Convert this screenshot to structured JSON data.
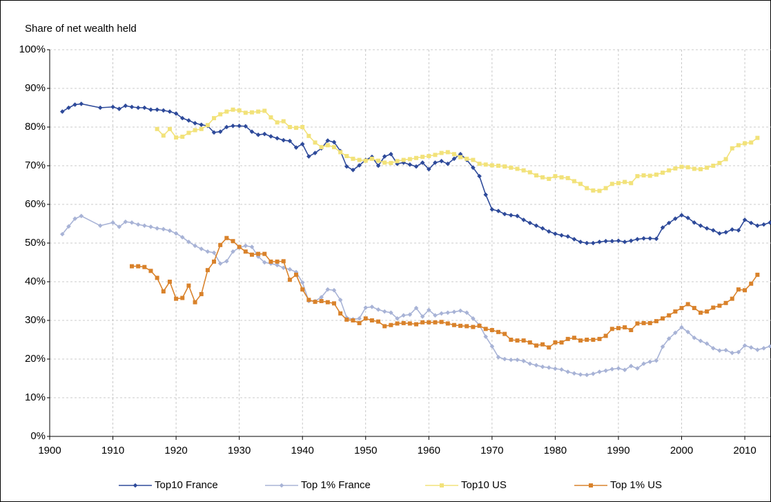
{
  "chart_data": {
    "type": "line",
    "y_label": "Share of net wealth held",
    "xlim": [
      1900,
      2015
    ],
    "xticks": [
      1900,
      1910,
      1920,
      1930,
      1940,
      1950,
      1960,
      1970,
      1980,
      1990,
      2000,
      2010
    ],
    "ylim": [
      0,
      100
    ],
    "yticks": [
      {
        "value": 0,
        "label": "0%"
      },
      {
        "value": 10,
        "label": "10%"
      },
      {
        "value": 20,
        "label": "20%"
      },
      {
        "value": 30,
        "label": "30%"
      },
      {
        "value": 40,
        "label": "40%"
      },
      {
        "value": 50,
        "label": "50%"
      },
      {
        "value": 60,
        "label": "60%"
      },
      {
        "value": 70,
        "label": "70%"
      },
      {
        "value": 80,
        "label": "80%"
      },
      {
        "value": 90,
        "label": "90%"
      },
      {
        "value": 100,
        "label": "100%"
      }
    ],
    "grid": true,
    "legend": "bottom",
    "series": [
      {
        "name": "Top10 France",
        "color": "#2e4a9a",
        "marker": "diamond",
        "x": [
          1902,
          1903,
          1904,
          1905,
          1908,
          1910,
          1911,
          1912,
          1913,
          1914,
          1915,
          1916,
          1917,
          1918,
          1919,
          1920,
          1921,
          1922,
          1923,
          1924,
          1925,
          1926,
          1927,
          1928,
          1929,
          1930,
          1931,
          1932,
          1933,
          1934,
          1935,
          1936,
          1937,
          1938,
          1939,
          1940,
          1941,
          1942,
          1943,
          1944,
          1945,
          1946,
          1947,
          1948,
          1949,
          1950,
          1951,
          1952,
          1953,
          1954,
          1955,
          1956,
          1957,
          1958,
          1959,
          1960,
          1961,
          1962,
          1963,
          1964,
          1965,
          1966,
          1967,
          1968,
          1969,
          1970,
          1971,
          1972,
          1973,
          1974,
          1975,
          1976,
          1977,
          1978,
          1979,
          1980,
          1981,
          1982,
          1983,
          1984,
          1985,
          1986,
          1987,
          1988,
          1989,
          1990,
          1991,
          1992,
          1993,
          1994,
          1995,
          1996,
          1997,
          1998,
          1999,
          2000,
          2001,
          2002,
          2003,
          2004,
          2005,
          2006,
          2007,
          2008,
          2009,
          2010,
          2011,
          2012,
          2013,
          2014
        ],
        "values": [
          84,
          85,
          85.8,
          86,
          85,
          85.2,
          84.7,
          85.5,
          85.2,
          85,
          85,
          84.5,
          84.5,
          84.3,
          84,
          83.5,
          82.3,
          81.7,
          81,
          80.6,
          80.3,
          78.6,
          78.8,
          80,
          80.3,
          80.3,
          80.2,
          78.8,
          78,
          78.2,
          77.6,
          77.1,
          76.6,
          76.4,
          74.7,
          75.6,
          72.4,
          73.3,
          74.5,
          76.5,
          76.1,
          73.8,
          69.8,
          68.9,
          70.1,
          71.5,
          72.3,
          70,
          72.4,
          73,
          70.5,
          70.8,
          70.3,
          69.8,
          70.8,
          69.1,
          70.8,
          71.2,
          70.5,
          71.8,
          73,
          71.5,
          69.5,
          67.3,
          62.5,
          58.7,
          58.3,
          57.5,
          57.2,
          57,
          56,
          55.2,
          54.5,
          53.8,
          53,
          52.4,
          52,
          51.7,
          51,
          50.3,
          50,
          50,
          50.3,
          50.5,
          50.5,
          50.6,
          50.3,
          50.6,
          51,
          51.2,
          51.2,
          51.1,
          54,
          55.2,
          56.3,
          57.2,
          56.5,
          55.3,
          54.5,
          53.8,
          53.3,
          52.5,
          52.8,
          53.5,
          53.3,
          56,
          55.2,
          54.5,
          54.8,
          55.3
        ]
      },
      {
        "name": "Top 1% France",
        "color": "#a8b3d6",
        "marker": "diamond",
        "x": [
          1902,
          1903,
          1904,
          1905,
          1908,
          1910,
          1911,
          1912,
          1913,
          1914,
          1915,
          1916,
          1917,
          1918,
          1919,
          1920,
          1921,
          1922,
          1923,
          1924,
          1925,
          1926,
          1927,
          1928,
          1929,
          1930,
          1931,
          1932,
          1933,
          1934,
          1935,
          1936,
          1937,
          1938,
          1939,
          1940,
          1941,
          1942,
          1943,
          1944,
          1945,
          1946,
          1947,
          1948,
          1949,
          1950,
          1951,
          1952,
          1953,
          1954,
          1955,
          1956,
          1957,
          1958,
          1959,
          1960,
          1961,
          1962,
          1963,
          1964,
          1965,
          1966,
          1967,
          1968,
          1969,
          1970,
          1971,
          1972,
          1973,
          1974,
          1975,
          1976,
          1977,
          1978,
          1979,
          1980,
          1981,
          1982,
          1983,
          1984,
          1985,
          1986,
          1987,
          1988,
          1989,
          1990,
          1991,
          1992,
          1993,
          1994,
          1995,
          1996,
          1997,
          1998,
          1999,
          2000,
          2001,
          2002,
          2003,
          2004,
          2005,
          2006,
          2007,
          2008,
          2009,
          2010,
          2011,
          2012,
          2013,
          2014
        ],
        "values": [
          52.3,
          54.3,
          56.3,
          57,
          54.5,
          55.3,
          54.2,
          55.5,
          55.3,
          54.8,
          54.5,
          54.2,
          53.8,
          53.6,
          53.2,
          52.5,
          51.5,
          50.3,
          49.3,
          48.5,
          47.8,
          47.5,
          44.7,
          45.3,
          47.8,
          48.8,
          49.3,
          49,
          46.5,
          45,
          44.7,
          44.3,
          43.6,
          43.2,
          42.5,
          39.8,
          35,
          35,
          36,
          38,
          37.8,
          35.3,
          30.7,
          30.3,
          30.5,
          33.3,
          33.5,
          32.8,
          32.3,
          32,
          30.5,
          31.3,
          31.5,
          33.2,
          31,
          32.7,
          31.3,
          31.8,
          32,
          32.2,
          32.5,
          32,
          30.5,
          28.8,
          25.8,
          23.3,
          20.5,
          20,
          19.8,
          19.8,
          19.5,
          18.8,
          18.4,
          18,
          17.8,
          17.5,
          17.3,
          16.7,
          16.3,
          16,
          15.9,
          16.2,
          16.7,
          17,
          17.4,
          17.6,
          17.2,
          18.2,
          17.6,
          18.8,
          19.3,
          19.6,
          23.2,
          25.3,
          26.8,
          28.2,
          27,
          25.5,
          24.7,
          24,
          22.8,
          22.2,
          22.3,
          21.6,
          21.8,
          23.5,
          23,
          22.4,
          22.8,
          23.3
        ]
      },
      {
        "name": "Top10 US",
        "color": "#f2e27a",
        "marker": "square",
        "x": [
          1917,
          1918,
          1919,
          1920,
          1921,
          1922,
          1923,
          1924,
          1925,
          1926,
          1927,
          1928,
          1929,
          1930,
          1931,
          1932,
          1933,
          1934,
          1935,
          1936,
          1937,
          1938,
          1939,
          1940,
          1941,
          1942,
          1943,
          1944,
          1945,
          1946,
          1947,
          1948,
          1949,
          1950,
          1951,
          1952,
          1953,
          1954,
          1955,
          1956,
          1957,
          1958,
          1959,
          1960,
          1961,
          1962,
          1963,
          1964,
          1965,
          1966,
          1967,
          1968,
          1969,
          1970,
          1971,
          1972,
          1973,
          1974,
          1975,
          1976,
          1977,
          1978,
          1979,
          1980,
          1981,
          1982,
          1983,
          1984,
          1985,
          1986,
          1987,
          1988,
          1989,
          1990,
          1991,
          1992,
          1993,
          1994,
          1995,
          1996,
          1997,
          1998,
          1999,
          2000,
          2001,
          2002,
          2003,
          2004,
          2005,
          2006,
          2007,
          2008,
          2009,
          2010,
          2011,
          2012
        ],
        "values": [
          79.5,
          77.8,
          79.5,
          77.3,
          77.5,
          78.5,
          79.2,
          79.5,
          80.5,
          82.3,
          83.3,
          84,
          84.5,
          84.3,
          83.7,
          83.8,
          84,
          84.2,
          82.5,
          81.2,
          81.5,
          80,
          79.8,
          80,
          77.7,
          76,
          74.8,
          75.3,
          74.8,
          73.5,
          72.5,
          71.8,
          71.5,
          71.3,
          71.8,
          71.3,
          70.8,
          70.7,
          71.2,
          71.5,
          71.7,
          72,
          72.3,
          72.5,
          72.8,
          73.3,
          73.5,
          73,
          72.2,
          71.8,
          71.5,
          70.5,
          70.3,
          70.1,
          70,
          69.8,
          69.5,
          69.2,
          68.8,
          68.3,
          67.5,
          67,
          66.6,
          67.3,
          67,
          66.8,
          66,
          65.3,
          64.2,
          63.6,
          63.5,
          64.2,
          65.3,
          65.5,
          65.8,
          65.5,
          67.3,
          67.5,
          67.4,
          67.7,
          68.2,
          68.8,
          69.3,
          69.7,
          69.6,
          69.2,
          69.1,
          69.5,
          70,
          70.7,
          71.7,
          74.5,
          75.3,
          75.8,
          76,
          77.2
        ]
      },
      {
        "name": "Top 1% US",
        "color": "#d9822b",
        "marker": "square",
        "x": [
          1913,
          1914,
          1915,
          1916,
          1917,
          1918,
          1919,
          1920,
          1921,
          1922,
          1923,
          1924,
          1925,
          1926,
          1927,
          1928,
          1929,
          1930,
          1931,
          1932,
          1933,
          1934,
          1935,
          1936,
          1937,
          1938,
          1939,
          1940,
          1941,
          1942,
          1943,
          1944,
          1945,
          1946,
          1947,
          1948,
          1949,
          1950,
          1951,
          1952,
          1953,
          1954,
          1955,
          1956,
          1957,
          1958,
          1959,
          1960,
          1961,
          1962,
          1963,
          1964,
          1965,
          1966,
          1967,
          1968,
          1969,
          1970,
          1971,
          1972,
          1973,
          1974,
          1975,
          1976,
          1977,
          1978,
          1979,
          1980,
          1981,
          1982,
          1983,
          1984,
          1985,
          1986,
          1987,
          1988,
          1989,
          1990,
          1991,
          1992,
          1993,
          1994,
          1995,
          1996,
          1997,
          1998,
          1999,
          2000,
          2001,
          2002,
          2003,
          2004,
          2005,
          2006,
          2007,
          2008,
          2009,
          2010,
          2011,
          2012
        ],
        "values": [
          44,
          44,
          43.8,
          42.8,
          41,
          37.5,
          40,
          35.6,
          35.8,
          39,
          34.7,
          36.8,
          43,
          45.2,
          49.5,
          51.3,
          50.5,
          49,
          47.8,
          47,
          47.2,
          47.2,
          45.2,
          45.2,
          45.3,
          40.5,
          41.8,
          38,
          35.3,
          34.8,
          35,
          34.7,
          34.4,
          31.8,
          30.2,
          30,
          29.3,
          30.5,
          30,
          29.7,
          28.5,
          28.8,
          29.2,
          29.3,
          29.2,
          29,
          29.5,
          29.5,
          29.5,
          29.6,
          29.2,
          28.8,
          28.6,
          28.5,
          28.3,
          28.6,
          27.8,
          27.5,
          27,
          26.5,
          25,
          24.8,
          24.8,
          24.3,
          23.5,
          23.8,
          23,
          24.3,
          24.3,
          25.2,
          25.5,
          24.8,
          25,
          25,
          25.2,
          26,
          27.8,
          28,
          28.2,
          27.5,
          29.2,
          29.3,
          29.3,
          29.8,
          30.5,
          31.3,
          32.3,
          33.2,
          34.2,
          33.2,
          32,
          32.3,
          33.3,
          33.8,
          34.5,
          35.6,
          38,
          37.8,
          39.5,
          41.8
        ]
      }
    ]
  }
}
